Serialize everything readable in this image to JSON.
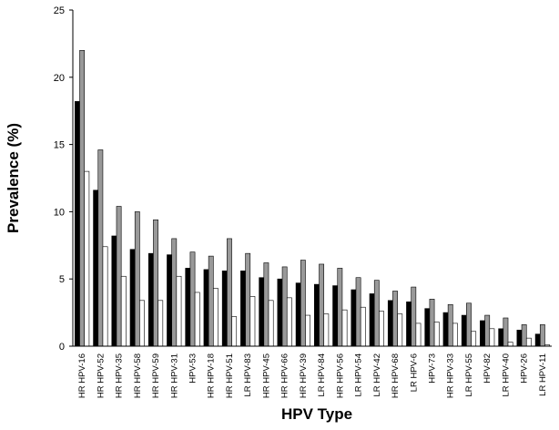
{
  "chart_data": {
    "type": "bar",
    "title": "",
    "xlabel": "HPV Type",
    "ylabel": "Prevalence (%)",
    "ylim": [
      0,
      25
    ],
    "yticks": [
      0,
      5,
      10,
      15,
      20,
      25
    ],
    "grid": false,
    "legend": "none",
    "categories": [
      "HR HPV-16",
      "HR HPV-52",
      "HR HPV-35",
      "HR HPV-58",
      "HR HPV-59",
      "HR HPV-31",
      "HPV-53",
      "HR HPV-18",
      "HR HPV-51",
      "LR HPV-83",
      "HR HPV-45",
      "HR HPV-66",
      "HR HPV-39",
      "LR HPV-84",
      "HR HPV-56",
      "LR HPV-54",
      "LR HPV-42",
      "HR HPV-68",
      "LR HPV-6",
      "HPV-73",
      "HR HPV-33",
      "LR HPV-55",
      "HPV-82",
      "LR HPV-40",
      "HPV-26",
      "LR HPV-11"
    ],
    "series": [
      {
        "color": "#000000",
        "values": [
          18.2,
          11.6,
          8.2,
          7.2,
          6.9,
          6.8,
          5.8,
          5.7,
          5.6,
          5.6,
          5.1,
          5.0,
          4.7,
          4.6,
          4.5,
          4.2,
          3.9,
          3.4,
          3.3,
          2.8,
          2.5,
          2.3,
          1.9,
          1.3,
          1.2,
          0.9
        ]
      },
      {
        "color": "#999999",
        "values": [
          22.0,
          14.6,
          10.4,
          10.0,
          9.4,
          8.0,
          7.0,
          6.7,
          8.0,
          6.9,
          6.2,
          5.9,
          6.4,
          6.1,
          5.8,
          5.1,
          4.9,
          4.1,
          4.4,
          3.5,
          3.1,
          3.2,
          2.3,
          2.1,
          1.6,
          1.6
        ]
      },
      {
        "color": "#ffffff",
        "values": [
          13.0,
          7.4,
          5.2,
          3.4,
          3.4,
          5.2,
          4.0,
          4.3,
          2.2,
          3.7,
          3.4,
          3.6,
          2.3,
          2.4,
          2.7,
          2.9,
          2.6,
          2.4,
          1.7,
          1.8,
          1.7,
          1.1,
          1.3,
          0.3,
          0.6,
          0.1
        ]
      }
    ]
  }
}
